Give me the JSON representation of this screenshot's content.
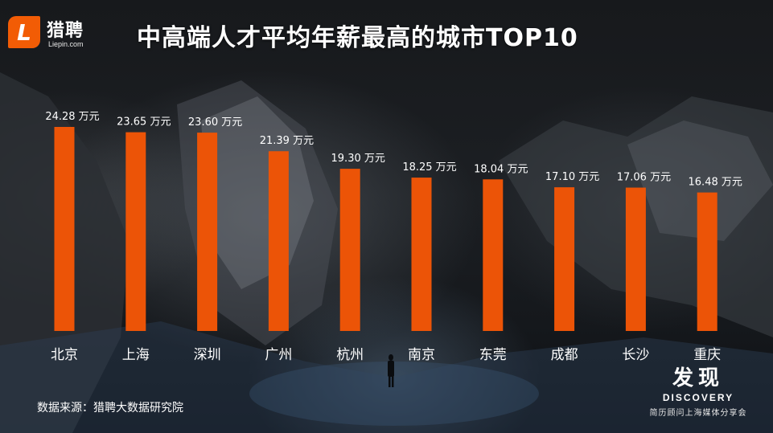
{
  "header": {
    "logo_mark": "L",
    "logo_name": "猎聘",
    "logo_domain": "Liepin.com",
    "title": "中高端人才平均年薪最高的城市TOP10"
  },
  "footer": {
    "source": "数据来源：猎聘大数据研究院"
  },
  "brand": {
    "name_cn": "发现",
    "name_en": "DISCOVERY",
    "subtitle": "简历顾问上海媒体分享会"
  },
  "colors": {
    "bar": "#ec5407",
    "text": "#ffffff"
  },
  "chart_data": {
    "type": "bar",
    "title": "中高端人才平均年薪最高的城市TOP10",
    "categories": [
      "北京",
      "上海",
      "深圳",
      "广州",
      "杭州",
      "南京",
      "东莞",
      "成都",
      "长沙",
      "重庆"
    ],
    "values": [
      24.28,
      23.65,
      23.6,
      21.39,
      19.3,
      18.25,
      18.04,
      17.1,
      17.06,
      16.48
    ],
    "unit": "万元",
    "data_labels": [
      "24.28 万元",
      "23.65 万元",
      "23.60 万元",
      "21.39 万元",
      "19.30 万元",
      "18.25 万元",
      "18.04 万元",
      "17.10 万元",
      "17.06 万元",
      "16.48 万元"
    ],
    "xlabel": "",
    "ylabel": "",
    "ylim": [
      0,
      24.28
    ],
    "grid": false,
    "legend": "none"
  }
}
